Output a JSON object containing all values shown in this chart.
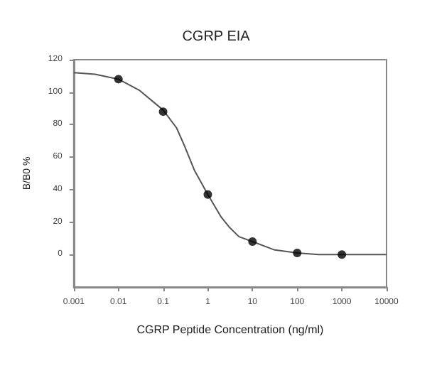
{
  "chart_data": {
    "type": "scatter",
    "title": "CGRP EIA",
    "xlabel": "CGRP Peptide Concentration (ng/ml)",
    "ylabel": "B/B0 %",
    "log": "x",
    "xlim": [
      0.001,
      10000
    ],
    "xticks": [
      {
        "value": 0.001,
        "label": "0.001"
      },
      {
        "value": 0.01,
        "label": "0.01"
      },
      {
        "value": 0.1,
        "label": "0.1"
      },
      1,
      10,
      100,
      1000,
      10000
    ],
    "ylim": [
      -20,
      120
    ],
    "yticks": [
      0,
      20,
      40,
      60,
      80,
      100,
      120
    ],
    "grid": false,
    "series": [
      {
        "type": "scatter",
        "color": "#000000",
        "marker": "circle",
        "x": [
          0.01,
          0.1,
          1,
          10,
          100,
          1000
        ],
        "values": [
          108,
          88,
          37,
          8,
          1,
          0
        ]
      },
      {
        "type": "line",
        "color": "#555555",
        "marker": "none",
        "line_style": "solid",
        "x": [
          0.001,
          0.003,
          0.01,
          0.03,
          0.1,
          0.2,
          0.3,
          0.5,
          1,
          2,
          3,
          5,
          10,
          30,
          100,
          300,
          1000,
          10000
        ],
        "values": [
          112,
          111,
          108,
          101,
          89,
          78,
          67,
          52,
          37,
          23,
          17,
          11,
          8,
          3,
          1,
          0,
          0,
          0
        ]
      }
    ]
  }
}
